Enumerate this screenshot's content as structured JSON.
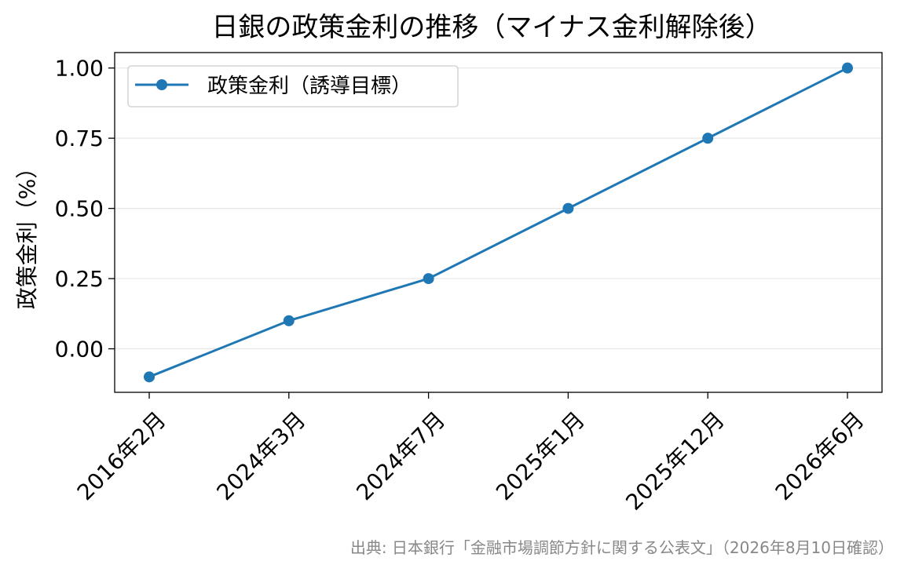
{
  "chart_data": {
    "type": "line",
    "title": "日銀の政策金利の推移（マイナス金利解除後）",
    "xlabel": "",
    "ylabel": "政策金利（%）",
    "categories": [
      "2016年2月",
      "2024年3月",
      "2024年7月",
      "2025年1月",
      "2025年12月",
      "2026年6月"
    ],
    "series": [
      {
        "name": "政策金利（誘導目標）",
        "values": [
          -0.1,
          0.1,
          0.25,
          0.5,
          0.75,
          1.0
        ],
        "color": "#1f77b4",
        "marker": "circle"
      }
    ],
    "ylim": [
      -0.155,
      1.055
    ],
    "yticks": [
      0.0,
      0.25,
      0.5,
      0.75,
      1.0
    ],
    "ytick_labels": [
      "0.00",
      "0.25",
      "0.50",
      "0.75",
      "1.00"
    ],
    "grid": "horizontal",
    "legend_position": "top-left",
    "source_note": "出典: 日本銀行「金融市場調節方針に関する公表文」（2026年8月10日確認）"
  }
}
